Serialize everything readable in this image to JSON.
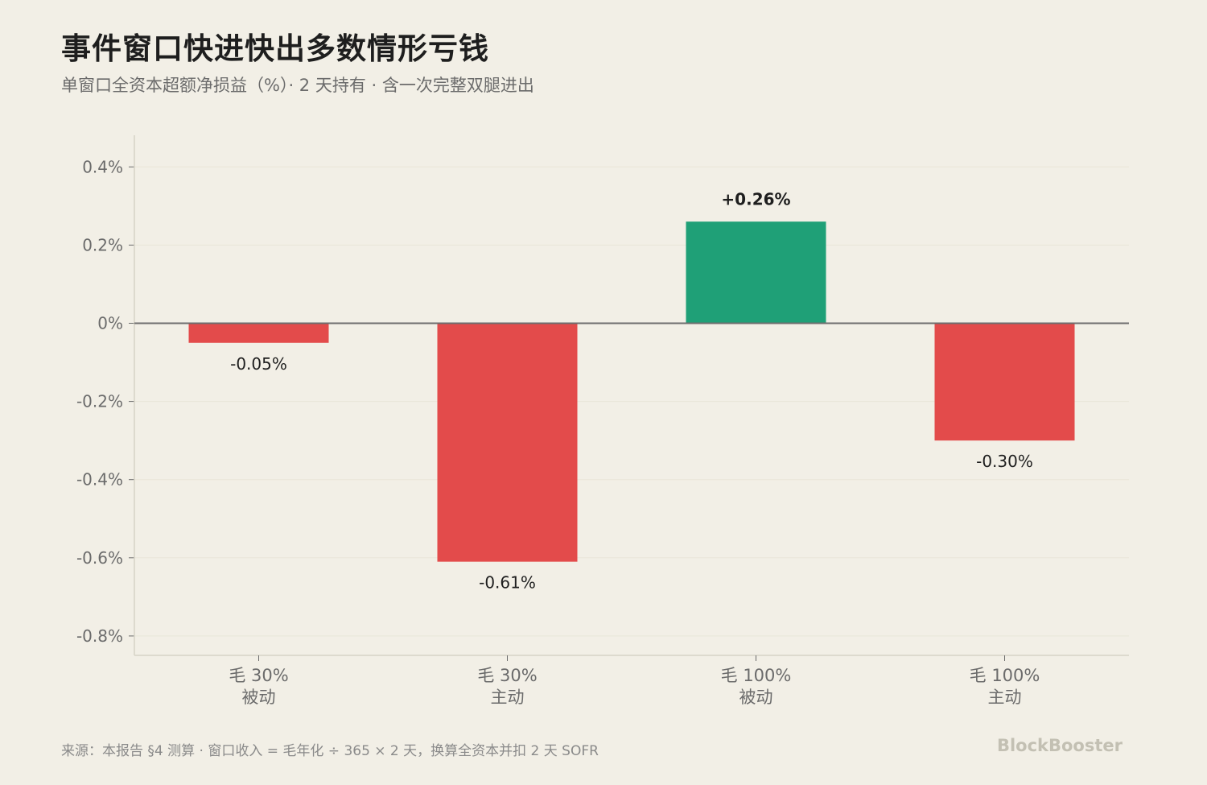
{
  "header": {
    "title": "事件窗口快进快出多数情形亏钱",
    "subtitle": "单窗口全资本超额净损益（%）· 2 天持有 · 含一次完整双腿进出"
  },
  "footer": {
    "source": "来源：本报告 §4 测算 · 窗口收入 = 毛年化 ÷ 365 × 2 天，换算全资本并扣 2 天 SOFR",
    "brand": "BlockBooster"
  },
  "colors": {
    "background": "#f2efe6",
    "positive": "#1fa077",
    "negative": "#e34b4b",
    "axis": "#d6d3c6",
    "zero_line": "#6e6e6e",
    "grid": "#e9e6d8",
    "tick_text": "#6b6b6b",
    "label_text": "#1e1e1e"
  },
  "chart_data": {
    "type": "bar",
    "title": "事件窗口快进快出多数情形亏钱",
    "subtitle": "单窗口全资本超额净损益（%）· 2 天持有 · 含一次完整双腿进出",
    "categories": [
      [
        "毛 30%",
        "被动"
      ],
      [
        "毛 30%",
        "主动"
      ],
      [
        "毛 100%",
        "被动"
      ],
      [
        "毛 100%",
        "主动"
      ]
    ],
    "values": [
      -0.05,
      -0.61,
      0.26,
      -0.3
    ],
    "data_labels": [
      "-0.05%",
      "-0.61%",
      "+0.26%",
      "-0.30%"
    ],
    "ylim": [
      -0.85,
      0.48
    ],
    "yticks": [
      0.4,
      0.2,
      0,
      -0.2,
      -0.4,
      -0.6,
      -0.8
    ],
    "ytick_labels": [
      "0.4%",
      "0.2%",
      "0%",
      "-0.2%",
      "-0.4%",
      "-0.6%",
      "-0.8%"
    ],
    "grid": true,
    "legend": "none"
  }
}
